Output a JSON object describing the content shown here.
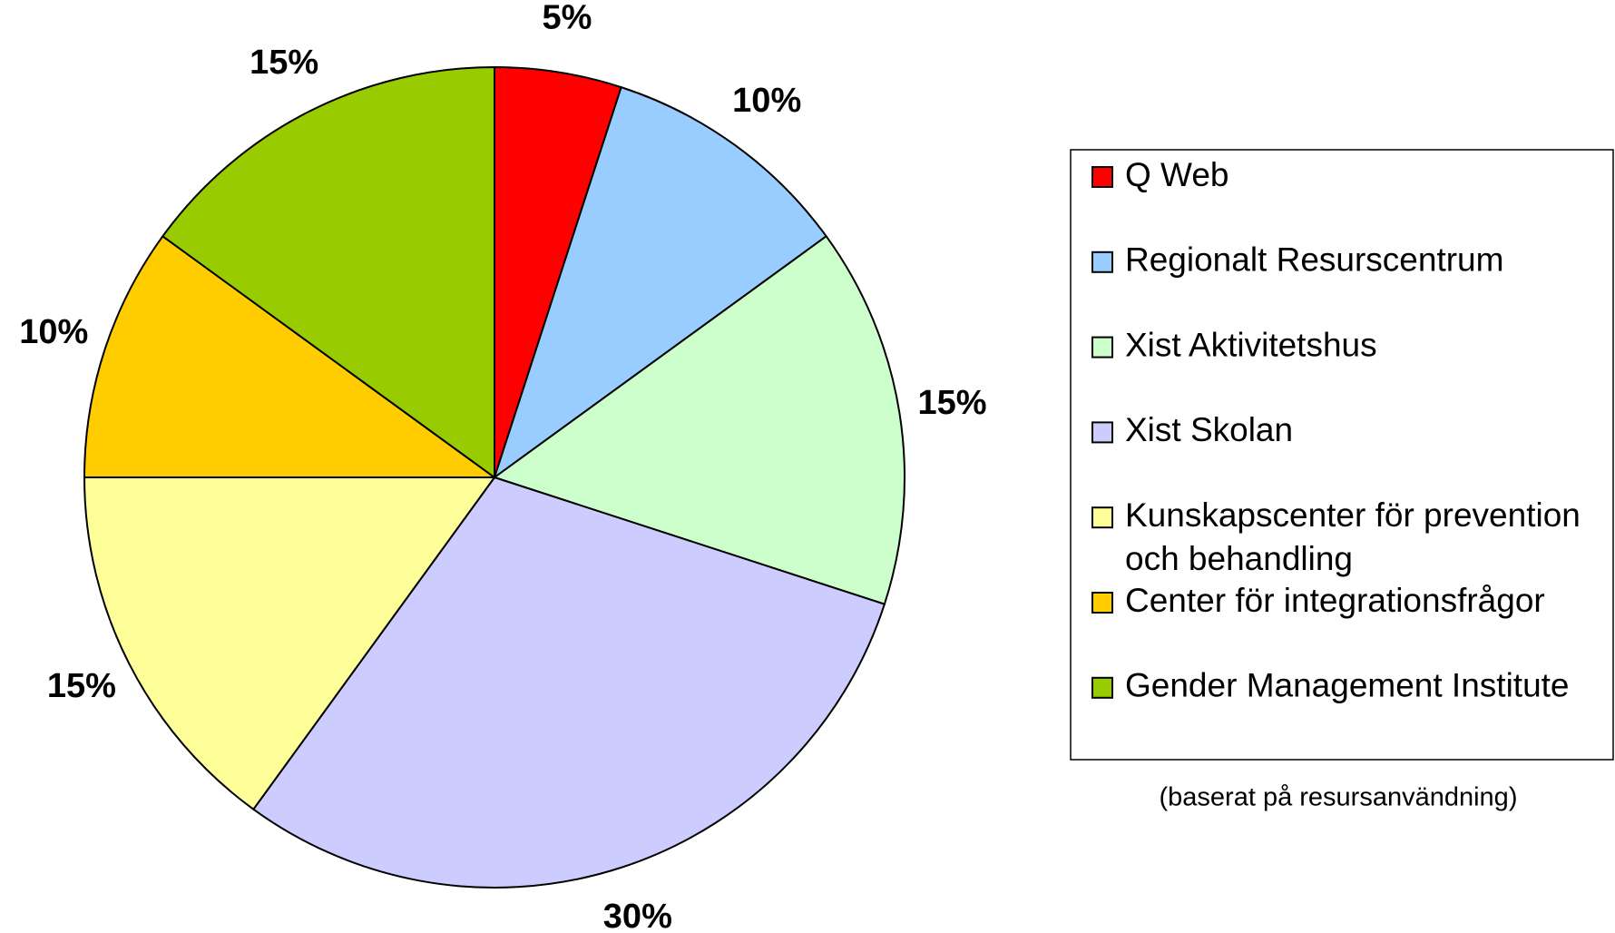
{
  "chart_data": {
    "type": "pie",
    "categories": [
      "Q Web",
      "Regionalt Resurscentrum",
      "Xist Aktivitetshus",
      "Xist Skolan",
      "Kunskapscenter för prevention och behandling",
      "Center för integrationsfrågor",
      "Gender Management Institute"
    ],
    "values": [
      5,
      10,
      15,
      30,
      15,
      10,
      15
    ],
    "value_labels": [
      "5%",
      "10%",
      "15%",
      "30%",
      "15%",
      "10%",
      "15%"
    ],
    "colors": [
      "#ff0000",
      "#99ccff",
      "#ccffcc",
      "#ccccff",
      "#ffff99",
      "#ffcc00",
      "#99cc00"
    ],
    "note": "(baserat på resursanvändning)",
    "legend": "right"
  }
}
